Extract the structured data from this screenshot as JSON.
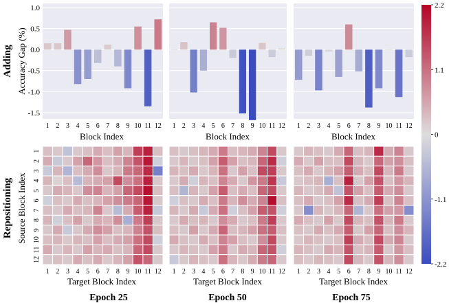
{
  "row_labels": [
    "Adding",
    "Repositioning"
  ],
  "colorbar": {
    "ticks": [
      "2.2",
      "1.1",
      "0",
      "-1.1",
      "-2.2"
    ],
    "range": [
      -2.2,
      2.2
    ]
  },
  "colors": {
    "neg": "#3b4cc0",
    "mid": "#dddcdc",
    "pos": "#b40426",
    "panel_bg": "#eaeaf2",
    "grid": "#ffffff"
  },
  "chart_data": [
    {
      "type": "bar",
      "panel": "Epoch 25",
      "xlabel": "Block Index",
      "ylabel": "Accuracy Gap (%)",
      "ylim": [
        -1.65,
        1.1
      ],
      "yticks": [
        "1.0",
        "0.5",
        "0.0",
        "-0.5",
        "-1.0",
        "-1.5"
      ],
      "categories": [
        "1",
        "2",
        "3",
        "4",
        "5",
        "6",
        "7",
        "8",
        "9",
        "10",
        "11",
        "12"
      ],
      "values": [
        0.15,
        0.15,
        0.47,
        -0.82,
        -0.7,
        -0.32,
        0.12,
        -0.4,
        -0.92,
        0.55,
        -1.35,
        0.72
      ]
    },
    {
      "type": "bar",
      "panel": "Epoch 50",
      "xlabel": "Block Index",
      "ylim": [
        -1.65,
        1.1
      ],
      "categories": [
        "1",
        "2",
        "3",
        "4",
        "5",
        "6",
        "7",
        "8",
        "9",
        "10",
        "11",
        "12"
      ],
      "values": [
        0.02,
        0.18,
        -1.02,
        -0.5,
        0.65,
        0.52,
        -0.2,
        -1.52,
        -1.68,
        0.16,
        -0.18,
        0.03
      ]
    },
    {
      "type": "bar",
      "panel": "Epoch 75",
      "xlabel": "Block Index",
      "ylim": [
        -1.65,
        1.1
      ],
      "categories": [
        "1",
        "2",
        "3",
        "4",
        "5",
        "6",
        "7",
        "8",
        "9",
        "10",
        "11",
        "12"
      ],
      "values": [
        -0.72,
        -0.15,
        -0.97,
        -0.05,
        -0.65,
        0.6,
        -0.52,
        -1.38,
        -0.92,
        0.02,
        -1.13,
        -0.18
      ]
    },
    {
      "type": "heatmap",
      "panel": "Epoch 25",
      "title": "Epoch 25",
      "xlabel": "Target Block Index",
      "ylabel": "Source Block Index",
      "x": [
        "1",
        "2",
        "3",
        "4",
        "5",
        "6",
        "7",
        "8",
        "9",
        "10",
        "11",
        "12"
      ],
      "y": [
        "1",
        "2",
        "3",
        "4",
        "5",
        "6",
        "7",
        "8",
        "9",
        "10",
        "11",
        "12"
      ],
      "values": [
        [
          0.3,
          0.2,
          -0.4,
          0.2,
          0.3,
          0.5,
          0.3,
          0.6,
          0.4,
          1.6,
          1.9,
          0.3
        ],
        [
          0.5,
          -0.3,
          0.2,
          0.6,
          1.2,
          0.7,
          0.3,
          0.5,
          0.9,
          1.4,
          2.0,
          -0.2
        ],
        [
          -0.3,
          0.4,
          -0.6,
          0.3,
          0.5,
          0.8,
          0.2,
          0.4,
          1.0,
          1.2,
          1.8,
          -1.4
        ],
        [
          0.4,
          0.1,
          0.3,
          -0.5,
          0.4,
          0.5,
          0.6,
          1.5,
          0.8,
          1.1,
          1.9,
          0.2
        ],
        [
          0.2,
          0.5,
          0.4,
          0.2,
          0.8,
          0.9,
          0.4,
          0.6,
          1.2,
          1.5,
          2.1,
          0.3
        ],
        [
          -0.2,
          0.3,
          0.2,
          0.5,
          0.3,
          0.4,
          0.6,
          0.8,
          1.0,
          1.2,
          2.0,
          0.2
        ],
        [
          0.3,
          0.2,
          0.5,
          0.3,
          0.4,
          0.9,
          0.2,
          -0.5,
          0.5,
          1.3,
          1.9,
          -0.3
        ],
        [
          0.4,
          -0.2,
          0.3,
          0.6,
          0.2,
          0.5,
          0.4,
          0.8,
          -0.7,
          1.0,
          1.6,
          0.2
        ],
        [
          0.2,
          0.5,
          -0.3,
          0.2,
          0.5,
          0.8,
          0.6,
          0.3,
          0.4,
          0.9,
          1.4,
          0.3
        ],
        [
          0.3,
          0.4,
          0.2,
          0.4,
          0.3,
          0.6,
          0.3,
          0.5,
          0.6,
          1.1,
          1.5,
          -0.2
        ],
        [
          0.5,
          0.2,
          0.4,
          0.2,
          0.6,
          0.4,
          0.5,
          0.3,
          0.4,
          1.2,
          1.5,
          0.2
        ],
        [
          0.2,
          0.3,
          0.2,
          0.5,
          0.3,
          0.5,
          0.2,
          0.4,
          0.6,
          1.4,
          1.2,
          0.2
        ]
      ]
    },
    {
      "type": "heatmap",
      "panel": "Epoch 50",
      "title": "Epoch 50",
      "xlabel": "Target Block Index",
      "x": [
        "1",
        "2",
        "3",
        "4",
        "5",
        "6",
        "7",
        "8",
        "9",
        "10",
        "11",
        "12"
      ],
      "y": [
        "1",
        "2",
        "3",
        "4",
        "5",
        "6",
        "7",
        "8",
        "9",
        "10",
        "11",
        "12"
      ],
      "values": [
        [
          0.3,
          0.2,
          0.3,
          0.4,
          0.5,
          1.0,
          0.3,
          0.4,
          0.5,
          0.9,
          1.5,
          0.2
        ],
        [
          0.2,
          0.4,
          0.2,
          0.3,
          0.6,
          1.3,
          0.6,
          0.3,
          0.4,
          1.2,
          1.8,
          -0.2
        ],
        [
          0.4,
          0.3,
          0.5,
          0.2,
          0.4,
          1.1,
          0.2,
          0.6,
          0.3,
          1.5,
          1.6,
          0.2
        ],
        [
          0.2,
          0.5,
          -0.2,
          0.4,
          0.3,
          0.9,
          0.5,
          0.2,
          0.7,
          1.0,
          1.7,
          -0.3
        ],
        [
          0.3,
          -0.6,
          0.4,
          0.2,
          0.6,
          1.3,
          0.3,
          0.5,
          0.3,
          1.2,
          1.5,
          0.2
        ],
        [
          -0.2,
          0.3,
          0.2,
          0.5,
          0.3,
          1.0,
          0.4,
          0.8,
          0.5,
          0.9,
          2.1,
          0.3
        ],
        [
          0.4,
          0.2,
          0.5,
          -0.3,
          0.5,
          1.1,
          -0.2,
          0.3,
          0.6,
          1.3,
          1.4,
          -0.2
        ],
        [
          0.2,
          0.5,
          0.3,
          0.4,
          0.2,
          0.8,
          0.5,
          0.2,
          0.3,
          1.0,
          1.6,
          0.2
        ],
        [
          0.3,
          0.2,
          0.6,
          0.2,
          0.5,
          1.2,
          0.3,
          0.4,
          0.6,
          1.1,
          1.3,
          0.3
        ],
        [
          0.5,
          0.3,
          0.2,
          0.5,
          0.3,
          0.9,
          0.6,
          0.3,
          0.2,
          0.8,
          1.5,
          0.2
        ],
        [
          0.2,
          0.4,
          0.3,
          0.2,
          0.6,
          1.0,
          0.2,
          0.5,
          0.4,
          1.2,
          1.4,
          -0.2
        ],
        [
          -0.3,
          0.2,
          0.4,
          0.3,
          0.2,
          1.1,
          0.4,
          0.2,
          0.5,
          1.0,
          1.2,
          0.2
        ]
      ]
    },
    {
      "type": "heatmap",
      "panel": "Epoch 75",
      "title": "Epoch 75",
      "xlabel": "Target Block Index",
      "x": [
        "1",
        "2",
        "3",
        "4",
        "5",
        "6",
        "7",
        "8",
        "9",
        "10",
        "11",
        "12"
      ],
      "y": [
        "1",
        "2",
        "3",
        "4",
        "5",
        "6",
        "7",
        "8",
        "9",
        "10",
        "11",
        "12"
      ],
      "values": [
        [
          0.2,
          0.4,
          0.3,
          0.2,
          0.5,
          1.2,
          0.3,
          0.4,
          1.8,
          0.5,
          0.9,
          0.2
        ],
        [
          0.5,
          0.2,
          0.6,
          0.3,
          0.3,
          1.5,
          0.4,
          0.2,
          1.2,
          0.6,
          0.8,
          0.3
        ],
        [
          0.3,
          0.5,
          0.2,
          0.4,
          0.6,
          1.3,
          0.5,
          0.3,
          1.5,
          0.4,
          1.0,
          0.2
        ],
        [
          0.2,
          0.3,
          0.4,
          -0.7,
          0.3,
          1.9,
          0.2,
          0.6,
          1.4,
          0.3,
          0.7,
          0.4
        ],
        [
          0.4,
          0.2,
          0.3,
          0.5,
          -0.4,
          1.4,
          0.6,
          0.3,
          1.3,
          0.5,
          0.8,
          0.2
        ],
        [
          0.3,
          0.5,
          0.2,
          0.3,
          0.6,
          1.8,
          0.3,
          0.5,
          1.6,
          0.3,
          0.9,
          0.3
        ],
        [
          0.2,
          -1.2,
          0.4,
          0.2,
          0.4,
          1.2,
          -0.6,
          0.2,
          1.1,
          0.6,
          0.7,
          -1.2
        ],
        [
          0.5,
          0.3,
          0.2,
          0.6,
          0.2,
          1.5,
          0.4,
          0.3,
          1.4,
          0.4,
          1.0,
          0.2
        ],
        [
          0.3,
          0.2,
          0.5,
          0.3,
          0.5,
          1.3,
          0.2,
          0.6,
          1.2,
          0.3,
          0.8,
          0.4
        ],
        [
          0.2,
          0.4,
          0.3,
          0.2,
          0.3,
          1.6,
          0.5,
          0.3,
          1.5,
          0.5,
          0.9,
          0.2
        ],
        [
          0.4,
          0.3,
          0.2,
          0.5,
          0.4,
          1.4,
          0.3,
          0.4,
          1.3,
          0.2,
          0.7,
          0.3
        ],
        [
          0.3,
          0.2,
          0.4,
          0.3,
          0.2,
          1.5,
          0.4,
          0.2,
          1.4,
          0.4,
          0.8,
          0.2
        ]
      ]
    }
  ]
}
